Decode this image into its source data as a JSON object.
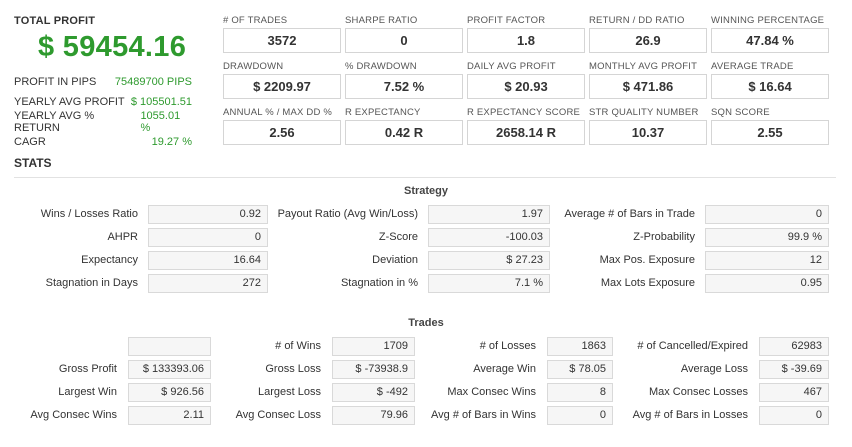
{
  "summary": {
    "total_profit_label": "TOTAL PROFIT",
    "total_profit_value": "$ 59454.16",
    "rows": [
      {
        "label": "PROFIT IN PIPS",
        "value": "75489700 PIPS"
      },
      {
        "label": "YEARLY AVG PROFIT",
        "value": "$ 105501.51"
      },
      {
        "label": "YEARLY AVG % RETURN",
        "value": "1055.01 %"
      },
      {
        "label": "CAGR",
        "value": "19.27 %"
      }
    ]
  },
  "tiles": [
    {
      "label": "# OF TRADES",
      "value": "3572"
    },
    {
      "label": "SHARPE RATIO",
      "value": "0"
    },
    {
      "label": "PROFIT FACTOR",
      "value": "1.8"
    },
    {
      "label": "RETURN / DD RATIO",
      "value": "26.9"
    },
    {
      "label": "WINNING PERCENTAGE",
      "value": "47.84 %"
    },
    {
      "label": "DRAWDOWN",
      "value": "$ 2209.97"
    },
    {
      "label": "% DRAWDOWN",
      "value": "7.52 %"
    },
    {
      "label": "DAILY AVG PROFIT",
      "value": "$ 20.93"
    },
    {
      "label": "MONTHLY AVG PROFIT",
      "value": "$ 471.86"
    },
    {
      "label": "AVERAGE TRADE",
      "value": "$ 16.64"
    },
    {
      "label": "ANNUAL % / MAX DD %",
      "value": "2.56"
    },
    {
      "label": "R EXPECTANCY",
      "value": "0.42 R"
    },
    {
      "label": "R EXPECTANCY SCORE",
      "value": "2658.14 R"
    },
    {
      "label": "STR QUALITY NUMBER",
      "value": "10.37"
    },
    {
      "label": "SQN SCORE",
      "value": "2.55"
    }
  ],
  "stats_title": "STATS",
  "strategy": {
    "title": "Strategy",
    "rows": [
      [
        {
          "label": "Wins / Losses Ratio",
          "value": "0.92"
        },
        {
          "label": "Payout Ratio (Avg Win/Loss)",
          "value": "1.97"
        },
        {
          "label": "Average # of Bars in Trade",
          "value": "0"
        }
      ],
      [
        {
          "label": "AHPR",
          "value": "0"
        },
        {
          "label": "Z-Score",
          "value": "-100.03"
        },
        {
          "label": "Z-Probability",
          "value": "99.9 %"
        }
      ],
      [
        {
          "label": "Expectancy",
          "value": "16.64"
        },
        {
          "label": "Deviation",
          "value": "$ 27.23"
        },
        {
          "label": "Max Pos. Exposure",
          "value": "12"
        }
      ],
      [
        {
          "label": "Stagnation in Days",
          "value": "272"
        },
        {
          "label": "Stagnation in %",
          "value": "7.1 %"
        },
        {
          "label": "Max Lots Exposure",
          "value": "0.95"
        }
      ]
    ]
  },
  "trades": {
    "title": "Trades",
    "rows": [
      [
        {
          "label": "",
          "value": ""
        },
        {
          "label": "# of Wins",
          "value": "1709"
        },
        {
          "label": "# of Losses",
          "value": "1863"
        },
        {
          "label": "# of Cancelled/Expired",
          "value": "62983"
        }
      ],
      [
        {
          "label": "Gross Profit",
          "value": "$ 133393.06"
        },
        {
          "label": "Gross Loss",
          "value": "$ -73938.9"
        },
        {
          "label": "Average Win",
          "value": "$ 78.05"
        },
        {
          "label": "Average Loss",
          "value": "$ -39.69"
        }
      ],
      [
        {
          "label": "Largest Win",
          "value": "$ 926.56"
        },
        {
          "label": "Largest Loss",
          "value": "$ -492"
        },
        {
          "label": "Max Consec Wins",
          "value": "8"
        },
        {
          "label": "Max Consec Losses",
          "value": "467"
        }
      ],
      [
        {
          "label": "Avg Consec Wins",
          "value": "2.11"
        },
        {
          "label": "Avg Consec Loss",
          "value": "79.96"
        },
        {
          "label": "Avg # of Bars in Wins",
          "value": "0"
        },
        {
          "label": "Avg # of Bars in Losses",
          "value": "0"
        }
      ]
    ]
  }
}
